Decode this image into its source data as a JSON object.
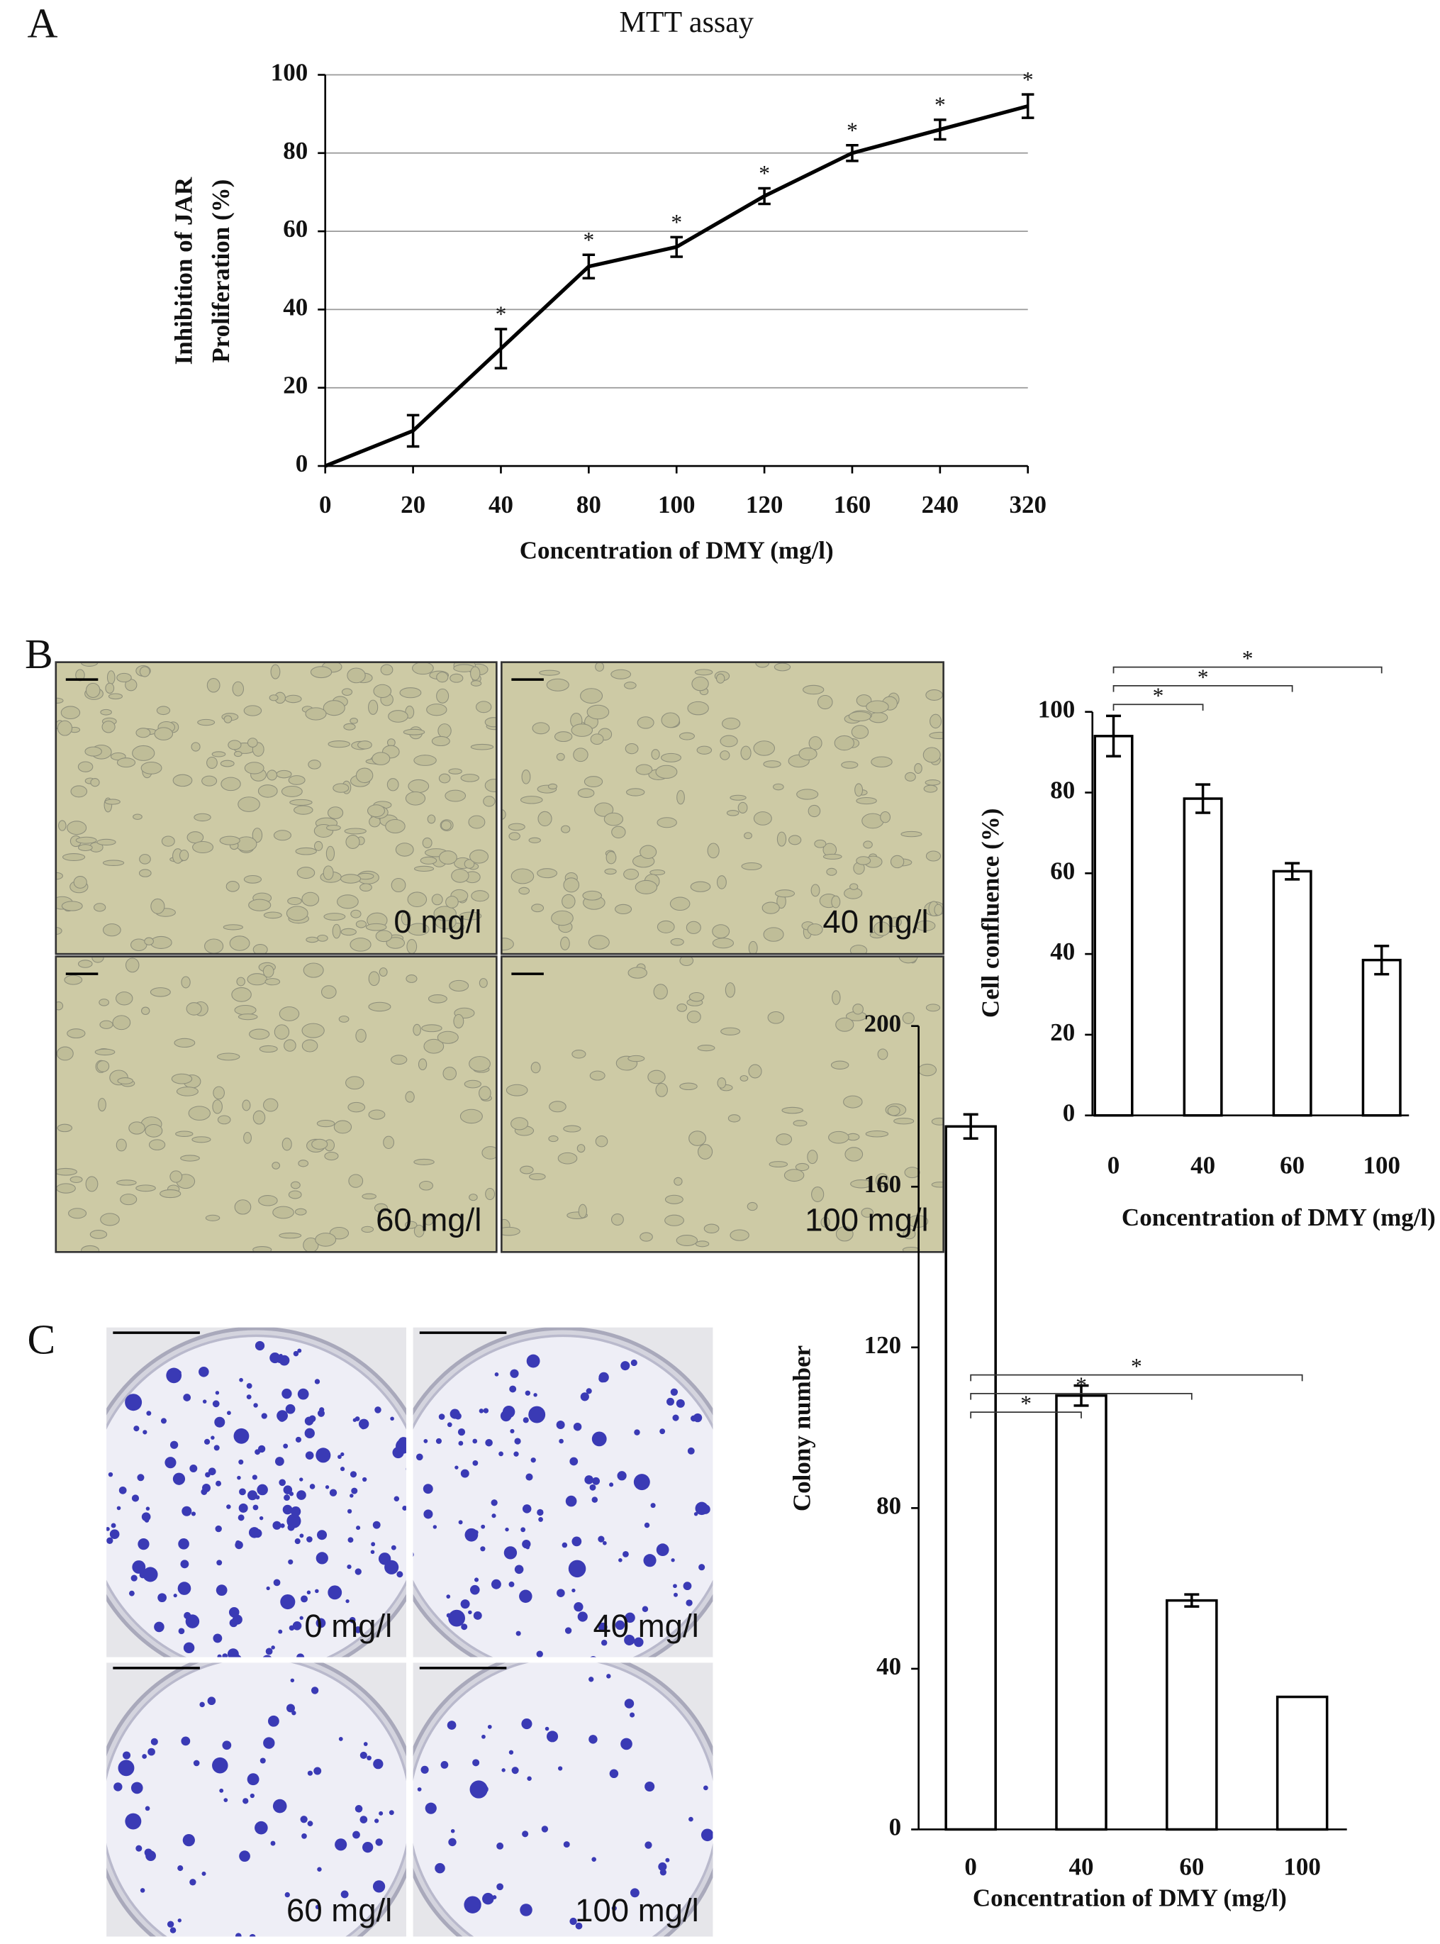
{
  "chart_data": [
    {
      "type": "line",
      "panel_label": "A",
      "title": "MTT assay",
      "y_label": [
        "Inhibition of JAR",
        "Proliferation (%)"
      ],
      "x_label": "Concentration of DMY (mg/l)",
      "categories": [
        "0",
        "20",
        "40",
        "80",
        "100",
        "120",
        "160",
        "240",
        "320"
      ],
      "values": [
        0,
        9,
        30,
        51,
        56,
        69,
        80,
        86,
        92
      ],
      "errors": [
        null,
        4,
        5,
        3,
        2.5,
        2,
        2,
        2.5,
        3
      ],
      "significance": [
        null,
        null,
        "*",
        "*",
        "*",
        "*",
        "*",
        "*",
        "*"
      ],
      "color": "#000000",
      "ylim": [
        0,
        100
      ],
      "yticks": [
        0,
        20,
        40,
        60,
        80,
        100
      ],
      "grid": true
    },
    {
      "type": "bar",
      "panel_label": "B",
      "images": [
        "0 mg/l",
        "40 mg/l",
        "60 mg/l",
        "100 mg/l"
      ],
      "y_label": "Cell confluence (%)",
      "x_label": "Concentration of DMY (mg/l)",
      "categories": [
        "0",
        "40",
        "60",
        "100"
      ],
      "values": [
        94,
        78.5,
        60.5,
        38.5
      ],
      "errors": [
        5,
        3.5,
        2,
        3.5
      ],
      "significance": [
        null,
        "*",
        "*",
        "*"
      ],
      "color": "#ffffff",
      "ylim": [
        0,
        100
      ],
      "yticks": [
        0,
        20,
        40,
        60,
        80,
        100
      ],
      "grid": false
    },
    {
      "type": "bar",
      "panel_label": "C",
      "images": [
        "0 mg/l",
        "40 mg/l",
        "60 mg/l",
        "100 mg/l"
      ],
      "y_label": "Colony number",
      "x_label": "Concentration of DMY (mg/l)",
      "categories": [
        "0",
        "40",
        "60",
        "100"
      ],
      "values": [
        175,
        108,
        57,
        33
      ],
      "errors": [
        3,
        2.5,
        1.5,
        null
      ],
      "significance": [
        null,
        "*",
        "*",
        "*"
      ],
      "color": "#ffffff",
      "ylim": [
        0,
        200
      ],
      "yticks": [
        0,
        40,
        80,
        120,
        160,
        200
      ],
      "grid": false
    }
  ]
}
